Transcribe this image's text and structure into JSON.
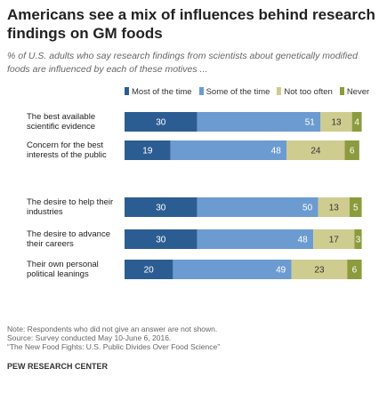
{
  "chart_data": {
    "type": "stacked-bar",
    "title": "Americans see a mix of influences behind research findings on GM foods",
    "subtitle": "% of U.S. adults who say research findings from scientists about genetically modified foods are influenced by each of these motives ...",
    "categories": [
      "The best available scientific evidence",
      "Concern for the best interests of the public",
      "The desire to help their industries",
      "The desire to advance their careers",
      "Their own personal political leanings"
    ],
    "series": [
      {
        "name": "Most of the time",
        "color": "#2c5d92",
        "values": [
          30,
          19,
          30,
          30,
          20
        ]
      },
      {
        "name": "Some of the time",
        "color": "#6b9bd1",
        "values": [
          51,
          48,
          50,
          48,
          49
        ]
      },
      {
        "name": "Not too often",
        "color": "#cfcc8f",
        "values": [
          13,
          24,
          13,
          17,
          23
        ]
      },
      {
        "name": "Never",
        "color": "#8c9b3e",
        "values": [
          4,
          6,
          5,
          3,
          6
        ]
      }
    ],
    "notes": [
      "Note: Respondents who did not give an answer are not shown.",
      "Source: Survey conducted May 10-June 6, 2016.",
      "“The New Food Fights: U.S. Public Divides Over Food Science”"
    ],
    "source": "PEW RESEARCH CENTER"
  }
}
